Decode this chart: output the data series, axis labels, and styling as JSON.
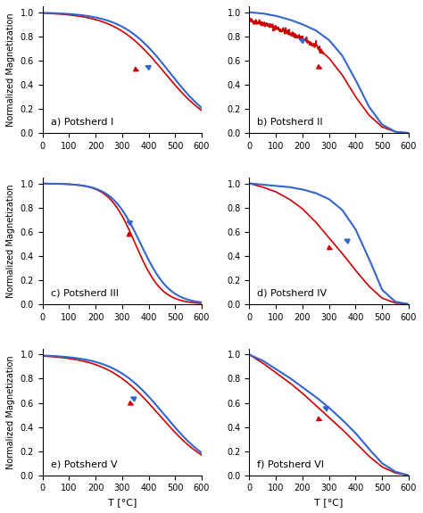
{
  "subplot_labels": [
    "a) Potsherd I",
    "b) Potsherd II",
    "c) Potsherd III",
    "d) Potsherd IV",
    "e) Potsherd V",
    "f) Potsherd VI"
  ],
  "ylabel": "Normalized Magnetization",
  "xlabel": "T [°C]",
  "xlim": [
    0,
    600
  ],
  "ylim": [
    0,
    1.05
  ],
  "yticks": [
    0,
    0.2,
    0.4,
    0.6,
    0.8,
    1
  ],
  "xticks": [
    0,
    100,
    200,
    300,
    400,
    500,
    600
  ],
  "heating_color": "#cc0000",
  "cooling_color": "#3366cc",
  "background_color": "#ffffff",
  "figsize": [
    4.74,
    5.75
  ],
  "dpi": 100
}
